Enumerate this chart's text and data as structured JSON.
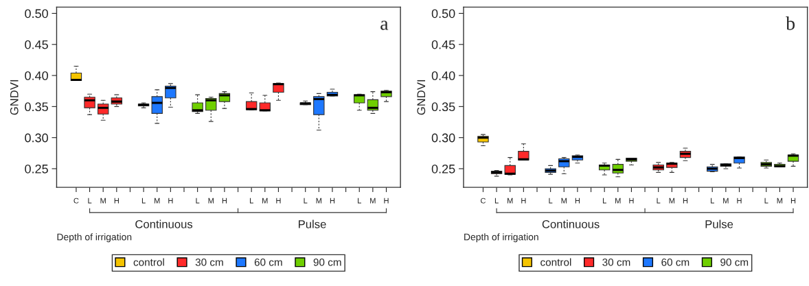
{
  "chart_data": [
    {
      "type": "box",
      "ylabel": "GNDVI",
      "xlabel": "Depth of irrigation",
      "annotations": [
        "a",
        "Continuous",
        "Pulse"
      ],
      "legend": "bottom",
      "grid": false,
      "categories": [
        "C",
        "L",
        "M",
        "H",
        null,
        "L",
        "M",
        "H",
        null,
        "L",
        "M",
        "H",
        null,
        "L",
        "M",
        "H",
        null,
        "L",
        "M",
        "H",
        null,
        "L",
        "M",
        "H"
      ],
      "ylim": [
        0.22,
        0.51
      ],
      "yticks": [
        {
          "value": 0.25,
          "label": "0.25"
        },
        {
          "value": 0.3,
          "label": "0.30"
        },
        {
          "value": 0.35,
          "label": "0.35"
        },
        {
          "value": 0.4,
          "label": "0.40"
        },
        {
          "value": 0.45,
          "label": "0.45"
        },
        {
          "value": 0.5,
          "label": "0.50"
        }
      ],
      "series": [
        {
          "name": "control",
          "color": "#f5c400",
          "boxes": [
            {
              "low": 0.392,
              "q1": 0.392,
              "median": 0.393,
              "q3": 0.404,
              "high": 0.415
            },
            null,
            null,
            null,
            null,
            null,
            null,
            null,
            null,
            null,
            null,
            null,
            null,
            null,
            null,
            null,
            null,
            null,
            null,
            null,
            null,
            null,
            null,
            null
          ]
        },
        {
          "name": "30 cm",
          "color": "#ff2a2a",
          "boxes": [
            null,
            {
              "low": 0.337,
              "q1": 0.348,
              "median": 0.36,
              "q3": 0.365,
              "high": 0.37
            },
            {
              "low": 0.328,
              "q1": 0.338,
              "median": 0.348,
              "q3": 0.354,
              "high": 0.36
            },
            {
              "low": 0.35,
              "q1": 0.354,
              "median": 0.358,
              "q3": 0.364,
              "high": 0.369
            },
            null,
            null,
            null,
            null,
            null,
            null,
            null,
            null,
            null,
            {
              "low": 0.345,
              "q1": 0.345,
              "median": 0.346,
              "q3": 0.358,
              "high": 0.372
            },
            {
              "low": 0.343,
              "q1": 0.343,
              "median": 0.344,
              "q3": 0.356,
              "high": 0.368
            },
            {
              "low": 0.36,
              "q1": 0.373,
              "median": 0.386,
              "q3": 0.387,
              "high": 0.388
            },
            null,
            null,
            null,
            null,
            null,
            null,
            null,
            null
          ]
        },
        {
          "name": "60 cm",
          "color": "#1e78ff",
          "boxes": [
            null,
            null,
            null,
            null,
            null,
            {
              "low": 0.348,
              "q1": 0.351,
              "median": 0.353,
              "q3": 0.354,
              "high": 0.356
            },
            {
              "low": 0.323,
              "q1": 0.339,
              "median": 0.356,
              "q3": 0.366,
              "high": 0.377
            },
            {
              "low": 0.349,
              "q1": 0.364,
              "median": 0.38,
              "q3": 0.383,
              "high": 0.387
            },
            null,
            null,
            null,
            null,
            null,
            null,
            null,
            null,
            null,
            {
              "low": 0.353,
              "q1": 0.353,
              "median": 0.355,
              "q3": 0.356,
              "high": 0.359
            },
            {
              "low": 0.312,
              "q1": 0.337,
              "median": 0.362,
              "q3": 0.366,
              "high": 0.371
            },
            {
              "low": 0.367,
              "q1": 0.367,
              "median": 0.369,
              "q3": 0.373,
              "high": 0.378
            },
            null,
            null,
            null,
            null
          ]
        },
        {
          "name": "90 cm",
          "color": "#6fcf00",
          "boxes": [
            null,
            null,
            null,
            null,
            null,
            null,
            null,
            null,
            null,
            {
              "low": 0.339,
              "q1": 0.342,
              "median": 0.344,
              "q3": 0.356,
              "high": 0.369
            },
            {
              "low": 0.326,
              "q1": 0.344,
              "median": 0.36,
              "q3": 0.363,
              "high": 0.365
            },
            {
              "low": 0.347,
              "q1": 0.358,
              "median": 0.368,
              "q3": 0.371,
              "high": 0.374
            },
            null,
            null,
            null,
            null,
            null,
            null,
            null,
            null,
            null,
            {
              "low": 0.344,
              "q1": 0.356,
              "median": 0.368,
              "q3": 0.369,
              "high": 0.37
            },
            {
              "low": 0.339,
              "q1": 0.344,
              "median": 0.348,
              "q3": 0.361,
              "high": 0.374
            },
            {
              "low": 0.358,
              "q1": 0.366,
              "median": 0.373,
              "q3": 0.375,
              "high": 0.376
            }
          ]
        }
      ]
    },
    {
      "type": "box",
      "ylabel": "GNDVI",
      "xlabel": "Depth of irrigation",
      "annotations": [
        "b",
        "Continuous",
        "Pulse"
      ],
      "legend": "bottom",
      "grid": false,
      "categories": [
        "C",
        "L",
        "M",
        "H",
        null,
        "L",
        "M",
        "H",
        null,
        "L",
        "M",
        "H",
        null,
        "L",
        "M",
        "H",
        null,
        "L",
        "M",
        "H",
        null,
        "L",
        "M",
        "H"
      ],
      "ylim": [
        0.22,
        0.51
      ],
      "yticks": [
        {
          "value": 0.25,
          "label": "0.25"
        },
        {
          "value": 0.3,
          "label": "0.30"
        },
        {
          "value": 0.35,
          "label": "0.35"
        },
        {
          "value": 0.4,
          "label": "0.40"
        },
        {
          "value": 0.45,
          "label": "0.45"
        },
        {
          "value": 0.5,
          "label": "0.50"
        }
      ],
      "series": [
        {
          "name": "control",
          "color": "#f5c400",
          "boxes": [
            {
              "low": 0.287,
              "q1": 0.293,
              "median": 0.3,
              "q3": 0.302,
              "high": 0.305
            },
            null,
            null,
            null,
            null,
            null,
            null,
            null,
            null,
            null,
            null,
            null,
            null,
            null,
            null,
            null,
            null,
            null,
            null,
            null,
            null,
            null,
            null,
            null
          ]
        },
        {
          "name": "30 cm",
          "color": "#ff2a2a",
          "boxes": [
            null,
            {
              "low": 0.238,
              "q1": 0.242,
              "median": 0.244,
              "q3": 0.246,
              "high": 0.247
            },
            {
              "low": 0.24,
              "q1": 0.241,
              "median": 0.242,
              "q3": 0.255,
              "high": 0.268
            },
            {
              "low": 0.264,
              "q1": 0.264,
              "median": 0.265,
              "q3": 0.278,
              "high": 0.29
            },
            null,
            null,
            null,
            null,
            null,
            null,
            null,
            null,
            null,
            {
              "low": 0.244,
              "q1": 0.248,
              "median": 0.252,
              "q3": 0.256,
              "high": 0.26
            },
            {
              "low": 0.244,
              "q1": 0.252,
              "median": 0.258,
              "q3": 0.259,
              "high": 0.26
            },
            {
              "low": 0.263,
              "q1": 0.268,
              "median": 0.274,
              "q3": 0.278,
              "high": 0.283
            },
            null,
            null,
            null,
            null,
            null,
            null,
            null,
            null
          ]
        },
        {
          "name": "60 cm",
          "color": "#1e78ff",
          "boxes": [
            null,
            null,
            null,
            null,
            null,
            {
              "low": 0.241,
              "q1": 0.244,
              "median": 0.247,
              "q3": 0.25,
              "high": 0.255
            },
            {
              "low": 0.242,
              "q1": 0.253,
              "median": 0.262,
              "q3": 0.266,
              "high": 0.268
            },
            {
              "low": 0.259,
              "q1": 0.264,
              "median": 0.269,
              "q3": 0.271,
              "high": 0.272
            },
            null,
            null,
            null,
            null,
            null,
            null,
            null,
            null,
            null,
            {
              "low": 0.245,
              "q1": 0.246,
              "median": 0.25,
              "q3": 0.253,
              "high": 0.257
            },
            {
              "low": 0.25,
              "q1": 0.254,
              "median": 0.256,
              "q3": 0.258,
              "high": 0.258
            },
            {
              "low": 0.251,
              "q1": 0.259,
              "median": 0.267,
              "q3": 0.269,
              "high": 0.269
            },
            null,
            null,
            null,
            null
          ]
        },
        {
          "name": "90 cm",
          "color": "#6fcf00",
          "boxes": [
            null,
            null,
            null,
            null,
            null,
            null,
            null,
            null,
            null,
            {
              "low": 0.24,
              "q1": 0.248,
              "median": 0.255,
              "q3": 0.256,
              "high": 0.259
            },
            {
              "low": 0.237,
              "q1": 0.243,
              "median": 0.248,
              "q3": 0.257,
              "high": 0.265
            },
            {
              "low": 0.256,
              "q1": 0.262,
              "median": 0.265,
              "q3": 0.267,
              "high": 0.267
            },
            null,
            null,
            null,
            null,
            null,
            null,
            null,
            null,
            null,
            {
              "low": 0.251,
              "q1": 0.254,
              "median": 0.257,
              "q3": 0.26,
              "high": 0.264
            },
            {
              "low": 0.253,
              "q1": 0.253,
              "median": 0.254,
              "q3": 0.257,
              "high": 0.259
            },
            {
              "low": 0.254,
              "q1": 0.262,
              "median": 0.271,
              "q3": 0.272,
              "high": 0.274
            }
          ]
        }
      ]
    }
  ]
}
